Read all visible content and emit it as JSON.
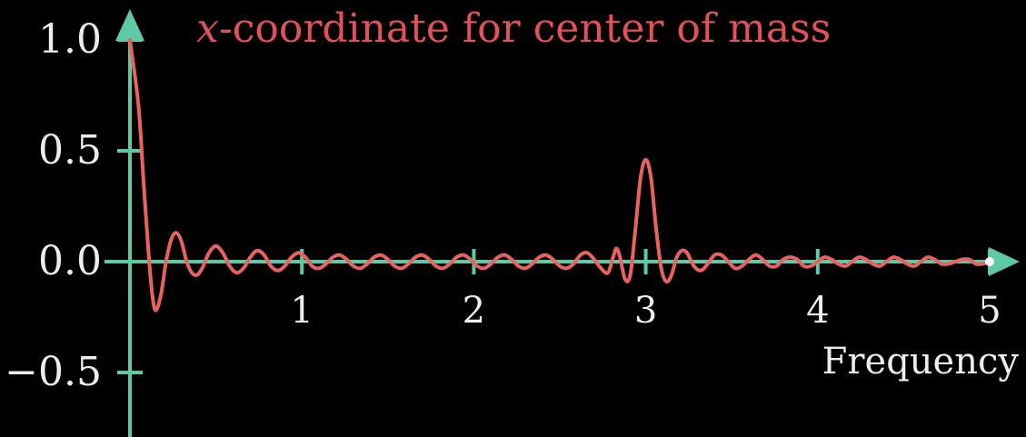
{
  "colors": {
    "background": "#000000",
    "axis": "#5fc8a6",
    "curve": "#e8635f",
    "title": "#e0515a",
    "text": "#ededed",
    "end_dot": "#ffffff"
  },
  "chart_data": {
    "type": "line",
    "title_var": "x",
    "title_rest": "-coordinate for center of mass",
    "xlabel": "Frequency",
    "ylabel": "",
    "xlim": [
      0,
      5
    ],
    "ylim": [
      -0.8,
      1.0
    ],
    "x_ticks": [
      {
        "value": 1,
        "label": "1"
      },
      {
        "value": 2,
        "label": "2"
      },
      {
        "value": 3,
        "label": "3"
      },
      {
        "value": 4,
        "label": "4"
      },
      {
        "value": 5,
        "label": "5"
      }
    ],
    "y_ticks": [
      {
        "value": 1.0,
        "label": "1.0"
      },
      {
        "value": 0.5,
        "label": "0.5"
      },
      {
        "value": 0.0,
        "label": "0.0"
      },
      {
        "value": -0.5,
        "label": "−0.5"
      }
    ],
    "grid": false,
    "series": [
      {
        "points": [
          [
            0.0,
            1.0
          ],
          [
            0.05,
            0.7
          ],
          [
            0.08,
            0.35
          ],
          [
            0.11,
            0.02
          ],
          [
            0.13,
            -0.15
          ],
          [
            0.15,
            -0.22
          ],
          [
            0.18,
            -0.15
          ],
          [
            0.21,
            0.0
          ],
          [
            0.24,
            0.1
          ],
          [
            0.27,
            0.13
          ],
          [
            0.3,
            0.09
          ],
          [
            0.33,
            0.0
          ],
          [
            0.36,
            -0.05
          ],
          [
            0.39,
            -0.06
          ],
          [
            0.42,
            -0.03
          ],
          [
            0.46,
            0.04
          ],
          [
            0.5,
            0.07
          ],
          [
            0.54,
            0.04
          ],
          [
            0.58,
            -0.02
          ],
          [
            0.62,
            -0.05
          ],
          [
            0.66,
            -0.03
          ],
          [
            0.7,
            0.02
          ],
          [
            0.74,
            0.05
          ],
          [
            0.78,
            0.03
          ],
          [
            0.82,
            -0.02
          ],
          [
            0.86,
            -0.04
          ],
          [
            0.9,
            -0.02
          ],
          [
            0.94,
            0.02
          ],
          [
            0.98,
            0.04
          ],
          [
            1.02,
            0.02
          ],
          [
            1.06,
            -0.02
          ],
          [
            1.1,
            -0.03
          ],
          [
            1.14,
            -0.01
          ],
          [
            1.18,
            0.02
          ],
          [
            1.22,
            0.03
          ],
          [
            1.26,
            0.01
          ],
          [
            1.3,
            -0.02
          ],
          [
            1.34,
            -0.03
          ],
          [
            1.38,
            -0.01
          ],
          [
            1.42,
            0.02
          ],
          [
            1.46,
            0.03
          ],
          [
            1.5,
            0.01
          ],
          [
            1.54,
            -0.02
          ],
          [
            1.58,
            -0.03
          ],
          [
            1.62,
            -0.01
          ],
          [
            1.66,
            0.02
          ],
          [
            1.7,
            0.03
          ],
          [
            1.74,
            0.01
          ],
          [
            1.78,
            -0.02
          ],
          [
            1.82,
            -0.03
          ],
          [
            1.86,
            -0.01
          ],
          [
            1.9,
            0.02
          ],
          [
            1.94,
            0.03
          ],
          [
            1.98,
            0.01
          ],
          [
            2.02,
            -0.02
          ],
          [
            2.06,
            -0.03
          ],
          [
            2.1,
            -0.01
          ],
          [
            2.14,
            0.02
          ],
          [
            2.18,
            0.03
          ],
          [
            2.22,
            0.01
          ],
          [
            2.26,
            -0.02
          ],
          [
            2.3,
            -0.03
          ],
          [
            2.34,
            -0.01
          ],
          [
            2.38,
            0.02
          ],
          [
            2.42,
            0.03
          ],
          [
            2.46,
            0.01
          ],
          [
            2.5,
            -0.02
          ],
          [
            2.54,
            -0.03
          ],
          [
            2.58,
            -0.01
          ],
          [
            2.62,
            0.03
          ],
          [
            2.66,
            0.04
          ],
          [
            2.7,
            0.01
          ],
          [
            2.74,
            -0.03
          ],
          [
            2.78,
            -0.05
          ],
          [
            2.81,
            0.02
          ],
          [
            2.83,
            0.06
          ],
          [
            2.85,
            0.02
          ],
          [
            2.88,
            -0.08
          ],
          [
            2.91,
            -0.06
          ],
          [
            2.94,
            0.15
          ],
          [
            2.97,
            0.38
          ],
          [
            3.0,
            0.46
          ],
          [
            3.03,
            0.38
          ],
          [
            3.06,
            0.15
          ],
          [
            3.09,
            -0.03
          ],
          [
            3.12,
            -0.09
          ],
          [
            3.15,
            -0.06
          ],
          [
            3.18,
            0.02
          ],
          [
            3.21,
            0.05
          ],
          [
            3.24,
            0.04
          ],
          [
            3.28,
            -0.02
          ],
          [
            3.32,
            -0.04
          ],
          [
            3.36,
            -0.01
          ],
          [
            3.4,
            0.03
          ],
          [
            3.44,
            0.03
          ],
          [
            3.48,
            0.0
          ],
          [
            3.52,
            -0.03
          ],
          [
            3.56,
            -0.02
          ],
          [
            3.6,
            0.01
          ],
          [
            3.64,
            0.03
          ],
          [
            3.68,
            0.01
          ],
          [
            3.72,
            -0.02
          ],
          [
            3.76,
            -0.02
          ],
          [
            3.8,
            0.01
          ],
          [
            3.84,
            0.02
          ],
          [
            3.88,
            0.01
          ],
          [
            3.92,
            -0.02
          ],
          [
            3.96,
            -0.02
          ],
          [
            4.0,
            0.0
          ],
          [
            4.04,
            0.02
          ],
          [
            4.08,
            0.01
          ],
          [
            4.12,
            -0.01
          ],
          [
            4.16,
            -0.02
          ],
          [
            4.2,
            0.0
          ],
          [
            4.24,
            0.02
          ],
          [
            4.28,
            0.01
          ],
          [
            4.32,
            -0.01
          ],
          [
            4.36,
            -0.02
          ],
          [
            4.4,
            0.0
          ],
          [
            4.44,
            0.02
          ],
          [
            4.48,
            0.01
          ],
          [
            4.52,
            -0.01
          ],
          [
            4.56,
            -0.02
          ],
          [
            4.6,
            0.0
          ],
          [
            4.64,
            0.02
          ],
          [
            4.68,
            0.01
          ],
          [
            4.72,
            -0.01
          ],
          [
            4.76,
            -0.01
          ],
          [
            4.8,
            0.0
          ],
          [
            4.84,
            0.01
          ],
          [
            4.88,
            0.01
          ],
          [
            4.92,
            -0.01
          ],
          [
            4.96,
            -0.01
          ],
          [
            5.0,
            0.0
          ]
        ]
      }
    ]
  }
}
